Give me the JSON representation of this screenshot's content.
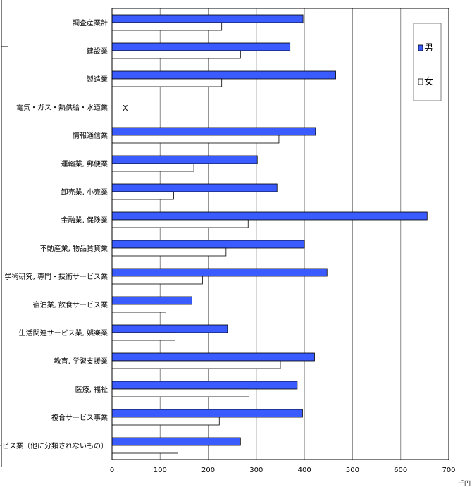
{
  "chart_data": {
    "type": "bar",
    "orientation": "horizontal",
    "categories": [
      "調査産業計",
      "建設業",
      "製造業",
      "電気・ガス・熱供給・水道業",
      "情報通信業",
      "運輸業, 郵便業",
      "卸売業, 小売業",
      "金融業, 保険業",
      "不動産業, 物品賃貸業",
      "学術研究, 専門・技術サービス業",
      "宿泊業, 飲食サービス業",
      "生活関連サービス業, 娯楽業",
      "教育, 学習支援業",
      "医療, 福祉",
      "複合サービス事業",
      "サービス業（他に分類されないもの）"
    ],
    "series": [
      {
        "name": "男",
        "color": "#3a5bff",
        "values": [
          397,
          370,
          465,
          null,
          423,
          302,
          343,
          655,
          400,
          447,
          166,
          240,
          421,
          385,
          396,
          267
        ]
      },
      {
        "name": "女",
        "color": "#ffffff",
        "values": [
          228,
          267,
          228,
          null,
          347,
          170,
          128,
          283,
          237,
          188,
          112,
          131,
          350,
          285,
          223,
          137
        ]
      }
    ],
    "annotations": [
      {
        "category": "電気・ガス・熱供給・水道業",
        "text": "X"
      }
    ],
    "xlim": [
      0,
      700
    ],
    "xticks": [
      0,
      100,
      200,
      300,
      400,
      500,
      600,
      700
    ],
    "x_unit": "千円",
    "grid": true,
    "legend_position": "top-right"
  }
}
